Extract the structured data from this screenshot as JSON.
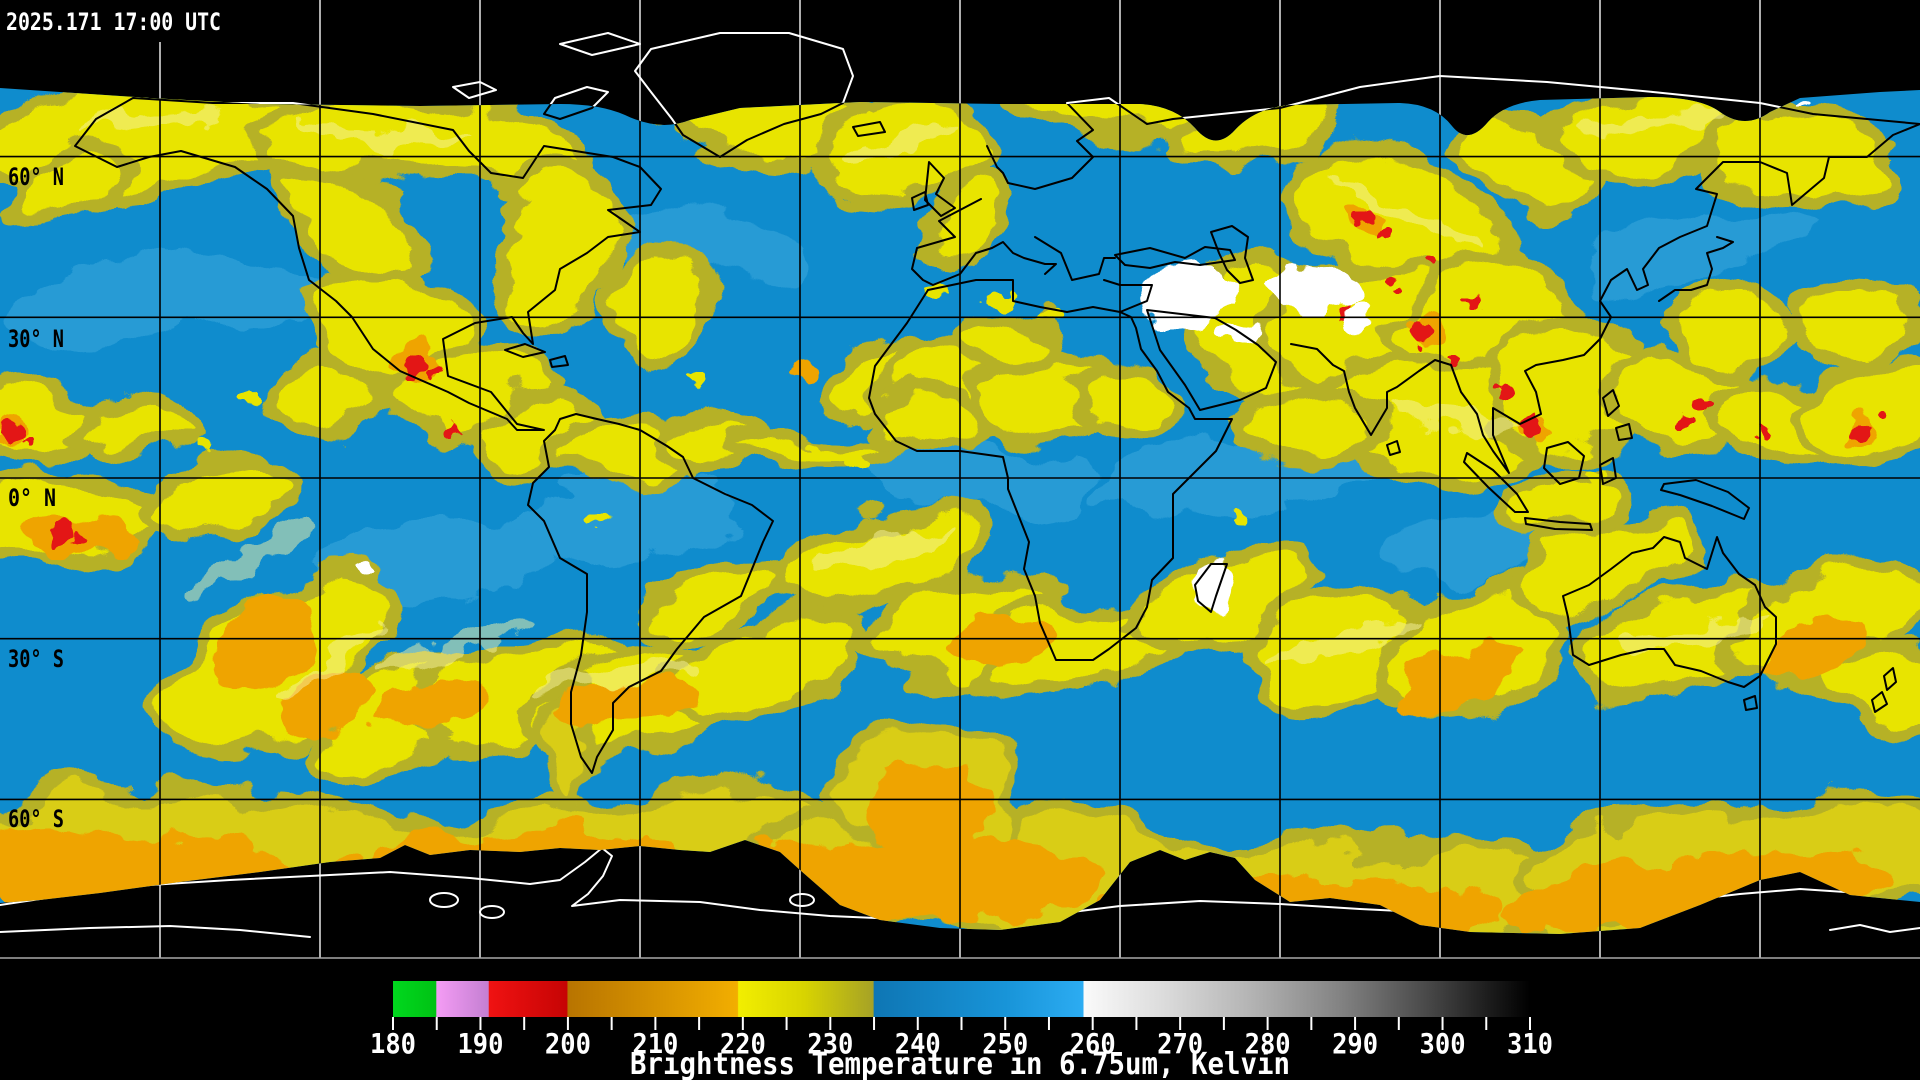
{
  "header": {
    "timestamp": "2025.171 17:00 UTC"
  },
  "map": {
    "description": "Global satellite water-vapor composite, equirectangular projection",
    "grid_spacing_degrees": 30,
    "latitude_labels": [
      {
        "text": "60° N",
        "lat": 60
      },
      {
        "text": "30° N",
        "lat": 30
      },
      {
        "text": "0° N",
        "lat": 0
      },
      {
        "text": "30° S",
        "lat": -30
      },
      {
        "text": "60° S",
        "lat": -60
      }
    ]
  },
  "colors": {
    "background": "#000000",
    "ocean_blue": "#0f8ccd",
    "blue_wisp": "#4db1e2",
    "cloud_yellow": "#e8e400",
    "cloud_olive": "#b6b128",
    "antarctic_yellow": "#d9cd12",
    "orange": "#efa400",
    "red": "#e31212",
    "white_cold": "#ffffff",
    "coast_in_data": "#000000",
    "coast_on_black": "#ffffff",
    "graticule_on_black": "#e8e8e8",
    "graticule_on_data": "#000000",
    "label_text": "#ffffff",
    "lat_label_text": "#000000"
  },
  "colorbar": {
    "title": "Brightness Temperature in 6.75um, Kelvin",
    "unit": "Kelvin",
    "min": 180,
    "max": 310,
    "tick_interval": 5,
    "label_interval": 10,
    "labels": [
      "180",
      "190",
      "200",
      "210",
      "220",
      "230",
      "240",
      "250",
      "260",
      "270",
      "280",
      "290",
      "300",
      "310"
    ],
    "stops": [
      {
        "k": 180.0,
        "color": "#00d81e"
      },
      {
        "k": 184.9,
        "color": "#00c214"
      },
      {
        "k": 185.0,
        "color": "#f49cf4"
      },
      {
        "k": 190.9,
        "color": "#c47fd2"
      },
      {
        "k": 191.0,
        "color": "#f01212"
      },
      {
        "k": 199.9,
        "color": "#c60404"
      },
      {
        "k": 200.0,
        "color": "#b87400"
      },
      {
        "k": 219.4,
        "color": "#f2ae00"
      },
      {
        "k": 219.5,
        "color": "#f2ee00"
      },
      {
        "k": 227.0,
        "color": "#d8d400"
      },
      {
        "k": 234.9,
        "color": "#a6a226"
      },
      {
        "k": 235.0,
        "color": "#0e76b4"
      },
      {
        "k": 250.0,
        "color": "#1894d8"
      },
      {
        "k": 258.9,
        "color": "#2cacf2"
      },
      {
        "k": 259.0,
        "color": "#fafafa"
      },
      {
        "k": 268.0,
        "color": "#dcdcdc"
      },
      {
        "k": 278.0,
        "color": "#b4b4b4"
      },
      {
        "k": 288.0,
        "color": "#848484"
      },
      {
        "k": 298.0,
        "color": "#4a4a4a"
      },
      {
        "k": 305.0,
        "color": "#1e1e1e"
      },
      {
        "k": 310.0,
        "color": "#000000"
      }
    ]
  }
}
